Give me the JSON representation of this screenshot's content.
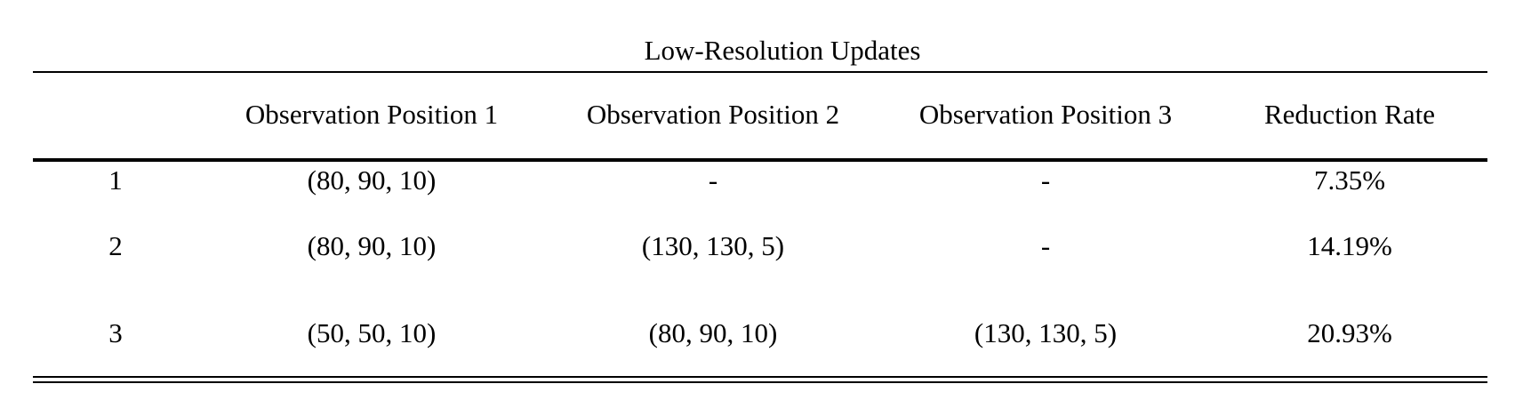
{
  "table": {
    "title": "Low-Resolution Updates",
    "header": [
      "Observation Position 1",
      "Observation Position 2",
      "Observation Position 3",
      "Reduction Rate"
    ],
    "rows": [
      [
        "1",
        "(80, 90, 10)",
        "-",
        "-",
        "7.35%"
      ],
      [
        "2",
        "(80, 90, 10)",
        "(130, 130, 5)",
        "-",
        "14.19%"
      ],
      [
        "3",
        "(50, 50, 10)",
        "(80, 90, 10)",
        "(130, 130, 5)",
        "20.93%"
      ]
    ]
  }
}
